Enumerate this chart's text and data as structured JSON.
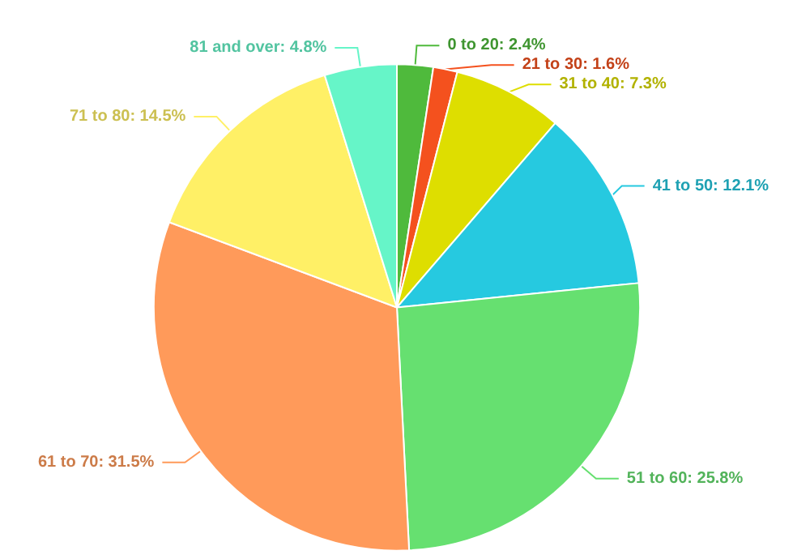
{
  "chart_data": {
    "type": "pie",
    "categories": [
      "0 to 20",
      "21 to 30",
      "31 to 40",
      "41 to 50",
      "51 to 60",
      "61 to 70",
      "71 to 80",
      "81 and over"
    ],
    "values": [
      2.4,
      1.6,
      7.3,
      12.1,
      25.8,
      31.5,
      14.5,
      4.8
    ],
    "value_labels": [
      "2.4%",
      "1.6%",
      "7.3%",
      "12.1%",
      "25.8%",
      "31.5%",
      "14.5%",
      "4.8%"
    ],
    "colors": [
      "#4fba3c",
      "#f4511e",
      "#dede00",
      "#26c9e0",
      "#66e070",
      "#ff9a5a",
      "#fff066",
      "#66f5c8"
    ],
    "legend": false
  }
}
